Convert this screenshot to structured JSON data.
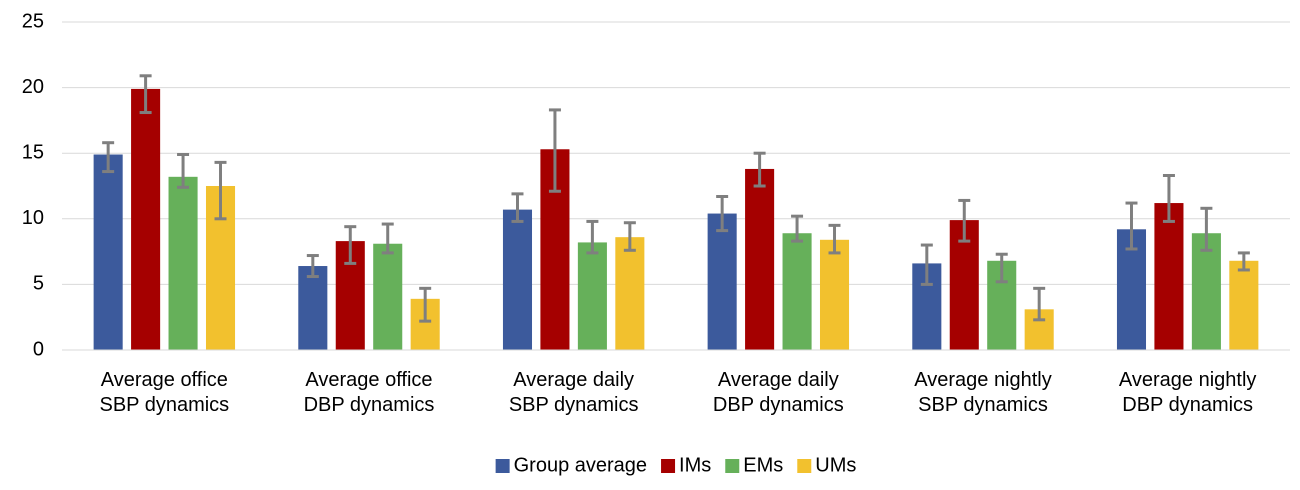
{
  "chart_data": {
    "type": "bar",
    "categories": [
      "Average office SBP dynamics",
      "Average office DBP dynamics",
      "Average daily SBP dynamics",
      "Average daily DBP dynamics",
      "Average nightly SBP dynamics",
      "Average nightly DBP dynamics"
    ],
    "series": [
      {
        "name": "Group average",
        "color": "#3c5a9c",
        "values": [
          14.9,
          6.4,
          10.7,
          10.4,
          6.6,
          9.2
        ],
        "errors_minus": [
          1.3,
          0.8,
          0.9,
          1.3,
          1.6,
          1.5
        ],
        "errors_plus": [
          0.9,
          0.8,
          1.2,
          1.3,
          1.4,
          2.0
        ]
      },
      {
        "name": "IMs",
        "color": "#a50000",
        "values": [
          19.9,
          8.3,
          15.3,
          13.8,
          9.9,
          11.2
        ],
        "errors_minus": [
          1.8,
          1.7,
          3.2,
          1.3,
          1.6,
          1.4
        ],
        "errors_plus": [
          1.0,
          1.1,
          3.0,
          1.2,
          1.5,
          2.1
        ]
      },
      {
        "name": "EMs",
        "color": "#66b05a",
        "values": [
          13.2,
          8.1,
          8.2,
          8.9,
          6.8,
          8.9
        ],
        "errors_minus": [
          0.8,
          0.7,
          0.8,
          0.6,
          1.6,
          1.3
        ],
        "errors_plus": [
          1.7,
          1.5,
          1.6,
          1.3,
          0.5,
          1.9
        ]
      },
      {
        "name": "UMs",
        "color": "#f2c12e",
        "values": [
          12.5,
          3.9,
          8.6,
          8.4,
          3.1,
          6.8
        ],
        "errors_minus": [
          2.5,
          1.7,
          1.0,
          1.0,
          0.8,
          0.7
        ],
        "errors_plus": [
          1.8,
          0.8,
          1.1,
          1.1,
          1.6,
          0.6
        ]
      }
    ],
    "error_color": "#7f7f7f",
    "ylim": [
      0,
      25
    ],
    "yticks": [
      0,
      5,
      10,
      15,
      20,
      25
    ],
    "grid": true,
    "legend": "bottom"
  }
}
